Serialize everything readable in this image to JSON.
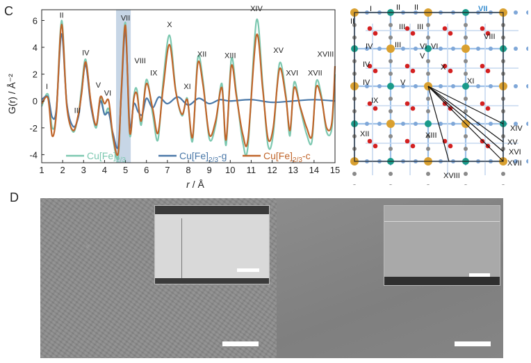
{
  "panels": {
    "c_label": "C",
    "d_label": "D"
  },
  "chart_data": {
    "type": "line",
    "xlabel_prefix": "r",
    "xlabel_suffix": " / Å",
    "ylabel": "G(r) / Å⁻²",
    "xlim": [
      1,
      15
    ],
    "ylim": [
      -4.6,
      6.8
    ],
    "xticks": [
      1,
      2,
      3,
      4,
      5,
      6,
      7,
      8,
      9,
      10,
      11,
      12,
      13,
      14,
      15
    ],
    "yticks": [
      -4,
      -2,
      0,
      2,
      4,
      6
    ],
    "highlight_band": [
      4.55,
      5.25
    ],
    "highlight_color": "#c7d6e6",
    "grid": false,
    "legend_position": "bottom",
    "legend": [
      {
        "base": "Cu[Fe]",
        "sub": "2/3",
        "suffix": "",
        "color": "#7cc8b0"
      },
      {
        "base": "Cu[Fe]",
        "sub": "2/3",
        "suffix": "-g",
        "color": "#4a78a8"
      },
      {
        "base": "Cu[Fe]",
        "sub": "2/3",
        "suffix": "-c",
        "color": "#c0652a"
      }
    ],
    "peak_labels": [
      {
        "text": "I",
        "x": 1.25,
        "y": 0.9
      },
      {
        "text": "II",
        "x": 1.95,
        "y": 6.2
      },
      {
        "text": "III",
        "x": 2.7,
        "y": -0.9
      },
      {
        "text": "IV",
        "x": 3.1,
        "y": 3.4
      },
      {
        "text": "V",
        "x": 3.7,
        "y": 1.0
      },
      {
        "text": "VI",
        "x": 4.15,
        "y": 0.4
      },
      {
        "text": "VII",
        "x": 5.0,
        "y": 6.0
      },
      {
        "text": "VIII",
        "x": 5.7,
        "y": 2.8
      },
      {
        "text": "IX",
        "x": 6.35,
        "y": 1.9
      },
      {
        "text": "X",
        "x": 7.1,
        "y": 5.5
      },
      {
        "text": "XI",
        "x": 7.95,
        "y": 0.9
      },
      {
        "text": "XII",
        "x": 8.65,
        "y": 3.3
      },
      {
        "text": "XIII",
        "x": 10.0,
        "y": 3.2
      },
      {
        "text": "XIV",
        "x": 11.25,
        "y": 6.7
      },
      {
        "text": "XV",
        "x": 12.3,
        "y": 3.6
      },
      {
        "text": "XVI",
        "x": 12.95,
        "y": 1.9
      },
      {
        "text": "XVII",
        "x": 14.05,
        "y": 1.9
      },
      {
        "text": "XVIII",
        "x": 14.55,
        "y": 3.3
      }
    ],
    "series": [
      {
        "color": "#7cc8b0",
        "x": [
          1.0,
          1.3,
          1.5,
          1.7,
          1.95,
          2.2,
          2.5,
          2.75,
          2.9,
          3.1,
          3.35,
          3.6,
          3.8,
          4.0,
          4.2,
          4.4,
          4.65,
          4.8,
          5.0,
          5.2,
          5.4,
          5.55,
          5.75,
          6.0,
          6.3,
          6.55,
          6.8,
          7.1,
          7.4,
          7.7,
          7.95,
          8.2,
          8.45,
          8.7,
          9.0,
          9.3,
          9.6,
          9.8,
          10.05,
          10.3,
          10.6,
          10.85,
          11.25,
          11.55,
          11.8,
          12.05,
          12.35,
          12.65,
          12.85,
          13.05,
          13.35,
          13.65,
          13.9,
          14.1,
          14.35,
          14.6,
          14.85,
          15.0
        ],
        "y": [
          -0.4,
          0.5,
          -2.0,
          -0.8,
          6.0,
          -0.3,
          -2.3,
          -1.0,
          0.9,
          3.1,
          -0.2,
          -2.0,
          0.3,
          -1.0,
          -0.6,
          -2.8,
          -4.2,
          0.8,
          5.8,
          -2.5,
          0.4,
          0.8,
          -1.8,
          1.6,
          -1.0,
          -2.9,
          1.5,
          4.9,
          0.8,
          -1.1,
          0.2,
          -3.0,
          3.2,
          1.5,
          -2.8,
          -1.8,
          1.3,
          -3.3,
          3.1,
          0.5,
          -3.1,
          -3.3,
          6.0,
          1.2,
          -3.3,
          -2.5,
          2.8,
          0.5,
          -2.6,
          1.4,
          -0.6,
          -2.5,
          -3.0,
          1.4,
          0.4,
          -2.3,
          -2.0,
          2.0
        ]
      },
      {
        "color": "#4a78a8",
        "x": [
          1.0,
          1.3,
          1.5,
          1.7,
          1.95,
          2.2,
          2.5,
          2.75,
          2.9,
          3.1,
          3.35,
          3.6,
          3.8,
          4.0,
          4.2,
          4.4,
          4.65,
          4.8,
          5.0,
          5.2,
          5.4,
          5.6,
          5.8,
          6.0,
          6.3,
          6.6,
          7.0,
          7.5,
          8.0,
          8.5,
          9.0,
          9.5,
          10.0,
          11.0,
          12.0,
          13.0,
          14.0,
          15.0
        ],
        "y": [
          0.1,
          0.3,
          -1.2,
          -0.6,
          5.0,
          -0.2,
          -1.9,
          -1.2,
          0.6,
          2.7,
          -0.4,
          -1.8,
          0.0,
          -1.0,
          -0.9,
          -2.4,
          -3.4,
          0.5,
          5.2,
          -1.8,
          -0.2,
          -0.8,
          -1.0,
          0.2,
          -0.5,
          0.3,
          -0.2,
          0.3,
          -0.3,
          0.2,
          -0.2,
          0.1,
          0.0,
          0.1,
          -0.1,
          0.0,
          0.1,
          0.0
        ]
      },
      {
        "color": "#c0652a",
        "x": [
          1.0,
          1.3,
          1.5,
          1.7,
          1.95,
          2.2,
          2.5,
          2.75,
          2.9,
          3.1,
          3.35,
          3.6,
          3.8,
          4.0,
          4.2,
          4.4,
          4.65,
          4.8,
          5.0,
          5.2,
          5.4,
          5.55,
          5.75,
          6.0,
          6.3,
          6.55,
          6.8,
          7.1,
          7.4,
          7.7,
          7.95,
          8.2,
          8.45,
          8.7,
          9.0,
          9.3,
          9.6,
          9.8,
          10.05,
          10.3,
          10.6,
          10.85,
          11.25,
          11.55,
          11.8,
          12.05,
          12.35,
          12.65,
          12.85,
          13.05,
          13.35,
          13.65,
          13.9,
          14.1,
          14.35,
          14.6,
          14.85,
          15.0
        ],
        "y": [
          -0.2,
          0.2,
          -2.6,
          -0.9,
          5.7,
          -0.4,
          -2.2,
          -1.0,
          0.5,
          2.9,
          -0.1,
          -1.8,
          0.3,
          -0.2,
          0.0,
          -2.6,
          -3.9,
          0.7,
          5.6,
          -2.3,
          0.2,
          0.5,
          -1.5,
          1.3,
          -0.6,
          -2.4,
          1.0,
          4.2,
          0.7,
          -1.0,
          0.1,
          -2.7,
          2.8,
          1.2,
          -2.5,
          -1.5,
          1.0,
          -2.9,
          2.6,
          0.3,
          -2.5,
          -2.8,
          4.9,
          0.9,
          -2.8,
          -2.0,
          2.4,
          0.3,
          -2.2,
          1.0,
          -0.5,
          -2.0,
          -2.6,
          1.0,
          0.2,
          -2.0,
          -1.6,
          2.6
        ]
      }
    ]
  },
  "lattice": {
    "labels": [
      "I",
      "II",
      "II",
      "II",
      "III",
      "III",
      "III",
      "IV",
      "IV",
      "IV",
      "V",
      "V",
      "VI",
      "VI",
      "VII",
      "VIII",
      "IX",
      "X",
      "XI",
      "XII",
      "XIII",
      "XIV",
      "XV",
      "XVI",
      "XVII",
      "XVIII"
    ],
    "highlight_label": "VII",
    "highlight_color": "#3a8fd0"
  }
}
